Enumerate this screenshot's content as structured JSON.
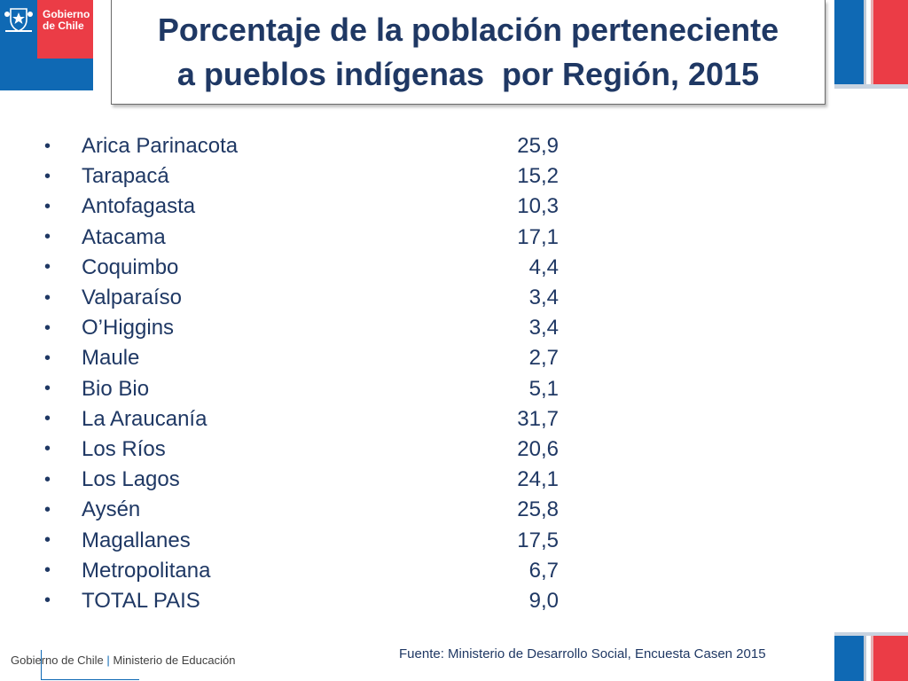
{
  "logo": {
    "line1": "Gobierno",
    "line2": "de Chile",
    "icon": "coat-of-arms-icon"
  },
  "title": {
    "line1": "Porcentaje de la población perteneciente",
    "line2": "a pueblos indígenas  por Región, 2015"
  },
  "rows": [
    {
      "region": "Arica Parinacota",
      "value": "25,9"
    },
    {
      "region": "Tarapacá",
      "value": "15,2"
    },
    {
      "region": "Antofagasta",
      "value": "10,3"
    },
    {
      "region": "Atacama",
      "value": "17,1"
    },
    {
      "region": "Coquimbo",
      "value": "4,4"
    },
    {
      "region": "Valparaíso",
      "value": "3,4"
    },
    {
      "region": "O’Higgins",
      "value": "3,4"
    },
    {
      "region": "Maule",
      "value": "2,7"
    },
    {
      "region": "Bio Bio",
      "value": "5,1"
    },
    {
      "region": "La Araucanía",
      "value": "31,7"
    },
    {
      "region": "Los Ríos",
      "value": "20,6"
    },
    {
      "region": "Los Lagos",
      "value": "24,1"
    },
    {
      "region": "Aysén",
      "value": "25,8"
    },
    {
      "region": "Magallanes",
      "value": "17,5"
    },
    {
      "region": "Metropolitana",
      "value": "6,7"
    },
    {
      "region": "TOTAL PAIS",
      "value": "9,0"
    }
  ],
  "footer": {
    "org": "Gobierno de Chile",
    "separator": "|",
    "ministry": "Ministerio de Educación",
    "source": "Fuente: Ministerio de Desarrollo Social, Encuesta Casen 2015"
  },
  "colors": {
    "blue": "#0f69b4",
    "red": "#eb3c46",
    "text": "#1f3864"
  }
}
